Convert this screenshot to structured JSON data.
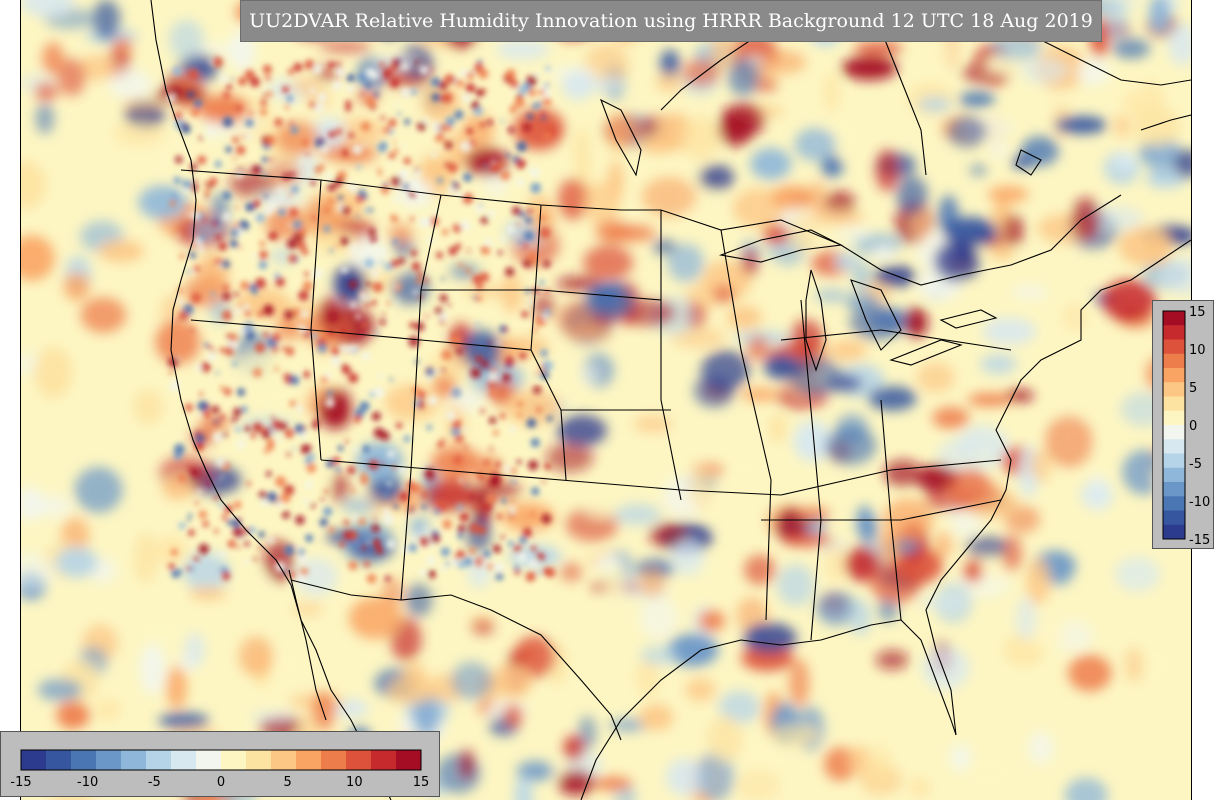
{
  "title": "UU2DVAR Relative Humidity Innovation using HRRR Background 12 UTC 18 Aug 2019",
  "colorbar": {
    "min": -15,
    "max": 15,
    "vertical_ticks": [
      "15",
      "10",
      "5",
      "0",
      "-5",
      "-10",
      "-15"
    ],
    "horizontal_ticks": [
      "-15",
      "-10",
      "-5",
      "0",
      "5",
      "10",
      "15"
    ],
    "colors": [
      "#2c3b8e",
      "#3657a0",
      "#4a76b4",
      "#6b97c8",
      "#8fb7d9",
      "#b5d4e8",
      "#d7e8f0",
      "#f2f6ee",
      "#fdf6c3",
      "#fde3a1",
      "#fcc684",
      "#f9a463",
      "#ee7d4c",
      "#dd523a",
      "#c72a2c",
      "#a50d24"
    ]
  },
  "map": {
    "background_color": "#fdf6c3",
    "region": "North America (CONUS)",
    "dry_color": "#2f5ea8",
    "moist_color": "#c8202b"
  }
}
